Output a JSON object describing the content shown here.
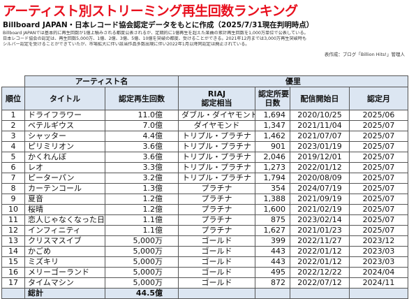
{
  "header": {
    "title": "アーティスト別ストリーミング再生回数ランキング",
    "subtitle": "Billboard JAPAN・日本レコード協会認定データをもとに作成（2025/7/31現在判明時点）",
    "notes": [
      "Billboard JAPANでは基本的に再生回数が1億上積みされる都度公表されるが、定期的に1億再生を超えた楽曲の累計再生回数を1,000万単位で公表している。",
      "日本レコード協会の認定は、再生回数5,000万、1億、2億、3億、5億、10億を突破の都度、受けることができる。2021年12月までは3,000万再生突破時も",
      "シルバー認定を受けることができていたが、市場拡大に伴い該当作品多数出現に伴い2022年1月以降同認定は廃止されている。"
    ],
    "credit": "表作成：ブログ「Billion Hits!」管理人"
  },
  "table": {
    "artist_label": "アーティスト名",
    "artist": "優里",
    "columns": [
      [
        "順位"
      ],
      [
        "タイトル"
      ],
      [
        "認定再生回数"
      ],
      [
        "RIAJ",
        "認定相当"
      ],
      [
        "認定所要",
        "日数"
      ],
      [
        "配信開始日"
      ],
      [
        "認定月"
      ]
    ],
    "rows": [
      [
        "1",
        "ドライフラワー",
        "11.0億",
        "ダブル・ダイヤモンド",
        "1,694",
        "2020/10/25",
        "2025/06"
      ],
      [
        "2",
        "ベテルギウス",
        "7.0億",
        "ダイヤモンド",
        "1,347",
        "2021/11/04",
        "2025/07"
      ],
      [
        "3",
        "シャッター",
        "4.4億",
        "トリプル・プラチナ",
        "1,462",
        "2021/07/07",
        "2025/07"
      ],
      [
        "4",
        "ピリミリオン",
        "3.6億",
        "トリプル・プラチナ",
        "901",
        "2023/01/19",
        "2025/07"
      ],
      [
        "5",
        "かくれんぼ",
        "3.6億",
        "トリプル・プラチナ",
        "2,046",
        "2019/12/01",
        "2025/07"
      ],
      [
        "6",
        "レオ",
        "3.3億",
        "トリプル・プラチナ",
        "1,273",
        "2022/01/12",
        "2025/07"
      ],
      [
        "7",
        "ピーターパン",
        "3.2億",
        "トリプル・プラチナ",
        "1,794",
        "2020/08/09",
        "2025/07"
      ],
      [
        "8",
        "カーテンコール",
        "1.3億",
        "プラチナ",
        "354",
        "2024/07/19",
        "2025/07"
      ],
      [
        "9",
        "夏音",
        "1.2億",
        "プラチナ",
        "1,388",
        "2021/09/19",
        "2025/07"
      ],
      [
        "10",
        "桜晴",
        "1.2億",
        "プラチナ",
        "1,600",
        "2021/02/19",
        "2025/07"
      ],
      [
        "11",
        "恋人じゃなくなった日",
        "1.1億",
        "プラチナ",
        "875",
        "2023/02/14",
        "2025/07"
      ],
      [
        "12",
        "インフィニティ",
        "1.1億",
        "プラチナ",
        "1,627",
        "2021/01/23",
        "2025/07"
      ],
      [
        "13",
        "クリスマスイブ",
        "5,000万",
        "ゴールド",
        "399",
        "2022/11/27",
        "2023/12"
      ],
      [
        "14",
        "かごめ",
        "5,000万",
        "ゴールド",
        "443",
        "2022/01/12",
        "2023/03"
      ],
      [
        "15",
        "ミズキリ",
        "5,000万",
        "ゴールド",
        "443",
        "2022/01/12",
        "2023/03"
      ],
      [
        "16",
        "メリーゴーランド",
        "5,000万",
        "ゴールド",
        "495",
        "2022/12/22",
        "2024/04"
      ],
      [
        "17",
        "タイムマシン",
        "5,000万",
        "ゴールド",
        "872",
        "2022/07/12",
        "2024/11"
      ]
    ],
    "total_label": "総計",
    "total_value": "44.5億"
  }
}
